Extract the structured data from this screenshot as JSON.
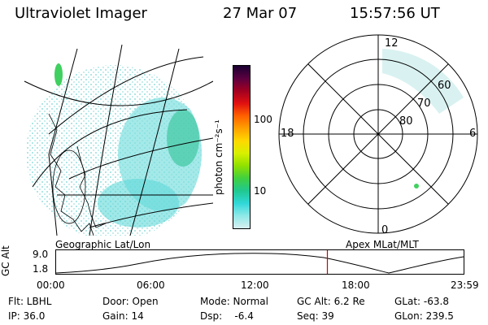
{
  "header": {
    "instrument": "Ultraviolet Imager",
    "date": "27 Mar 07",
    "time": "15:57:56 UT"
  },
  "colorbar": {
    "unit_label": "photon cm⁻²s⁻¹",
    "ticks": [
      "100",
      "10"
    ],
    "colors": [
      "#1a0030",
      "#5a0040",
      "#a00020",
      "#e01010",
      "#ff6000",
      "#ffa000",
      "#ffd800",
      "#d8f000",
      "#90e000",
      "#40d040",
      "#20c890",
      "#30d8d8",
      "#90e8e8",
      "#d8f0f0"
    ]
  },
  "left_panel": {
    "label": "Geographic Lat/Lon"
  },
  "polar_panel": {
    "label": "Apex MLat/MLT",
    "mlt_labels": {
      "top": "12",
      "left": "18",
      "right": "6",
      "bottom": "0"
    },
    "lat_labels": [
      "60",
      "70",
      "80"
    ]
  },
  "timeline": {
    "ylabel": "GC Alt",
    "ytick_top": "9.0",
    "ytick_bottom": "1.8",
    "xticks": [
      "00:00",
      "06:00",
      "12:00",
      "18:00",
      "23:59"
    ],
    "marker_time": "15:57:56",
    "marker_color": "#cc0000"
  },
  "info": {
    "filter": "Flt: LBHL",
    "door": "Door: Open",
    "mode": "Mode: Normal",
    "gc_alt": "GC Alt: 6.2 Re",
    "glat": "GLat: -63.8",
    "ip": "IP: 36.0",
    "gain": "Gain: 14",
    "dsp": "Dsp:    -6.4",
    "seq": "Seq: 39",
    "glon": "GLon: 239.5"
  }
}
